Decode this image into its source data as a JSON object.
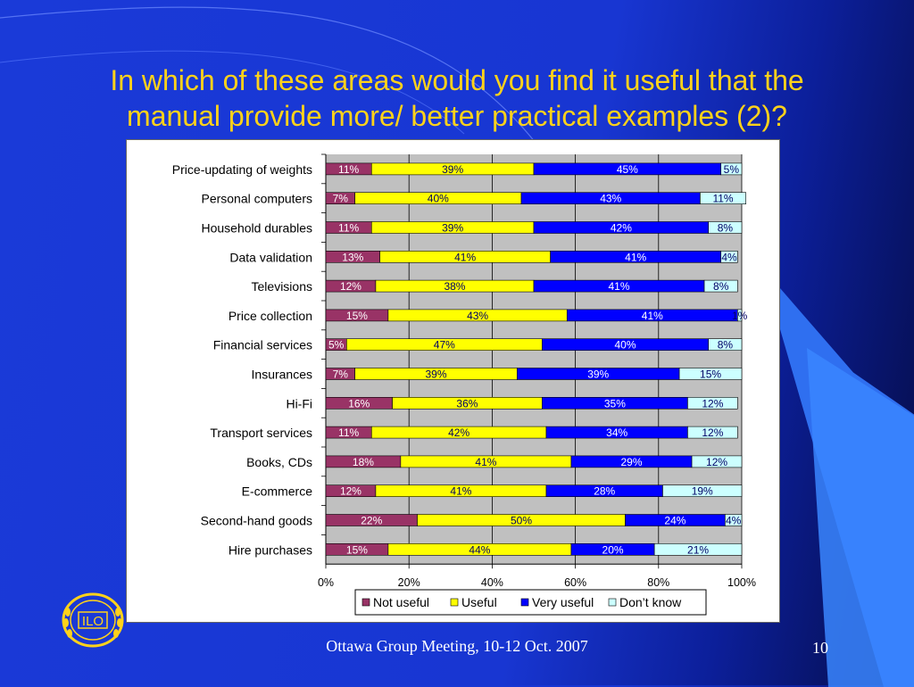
{
  "slide": {
    "title_line1": "In which of these areas would you find it useful that the",
    "title_line2": "manual provide more/ better practical examples (2)?",
    "footer": "Ottawa Group Meeting, 10-12 Oct. 2007",
    "page_number": "10"
  },
  "colors": {
    "not_useful": "#993366",
    "useful": "#ffff00",
    "very_useful": "#0000ff",
    "dont_know": "#ccffff",
    "plot_bg": "#c0c0c0",
    "title": "#ffd21a"
  },
  "chart_data": {
    "type": "bar",
    "orientation": "horizontal",
    "stacked": "percent",
    "categories": [
      "Price-updating of weights",
      "Personal computers",
      "Household durables",
      "Data validation",
      "Televisions",
      "Price collection",
      "Financial services",
      "Insurances",
      "Hi-Fi",
      "Transport services",
      "Books, CDs",
      "E-commerce",
      "Second-hand goods",
      "Hire purchases"
    ],
    "series": [
      {
        "name": "Not useful",
        "values": [
          11,
          7,
          11,
          13,
          12,
          15,
          5,
          7,
          16,
          11,
          18,
          12,
          22,
          15
        ]
      },
      {
        "name": "Useful",
        "values": [
          39,
          40,
          39,
          41,
          38,
          43,
          47,
          39,
          36,
          42,
          41,
          41,
          50,
          44
        ]
      },
      {
        "name": "Very useful",
        "values": [
          45,
          43,
          42,
          41,
          41,
          41,
          40,
          39,
          35,
          34,
          29,
          28,
          24,
          20
        ]
      },
      {
        "name": "Don’t know",
        "values": [
          5,
          11,
          8,
          4,
          8,
          1,
          8,
          15,
          12,
          12,
          12,
          19,
          4,
          21
        ]
      }
    ],
    "xticks": [
      "0%",
      "20%",
      "40%",
      "60%",
      "80%",
      "100%"
    ],
    "xlim": [
      0,
      100
    ],
    "legend_position": "bottom"
  }
}
